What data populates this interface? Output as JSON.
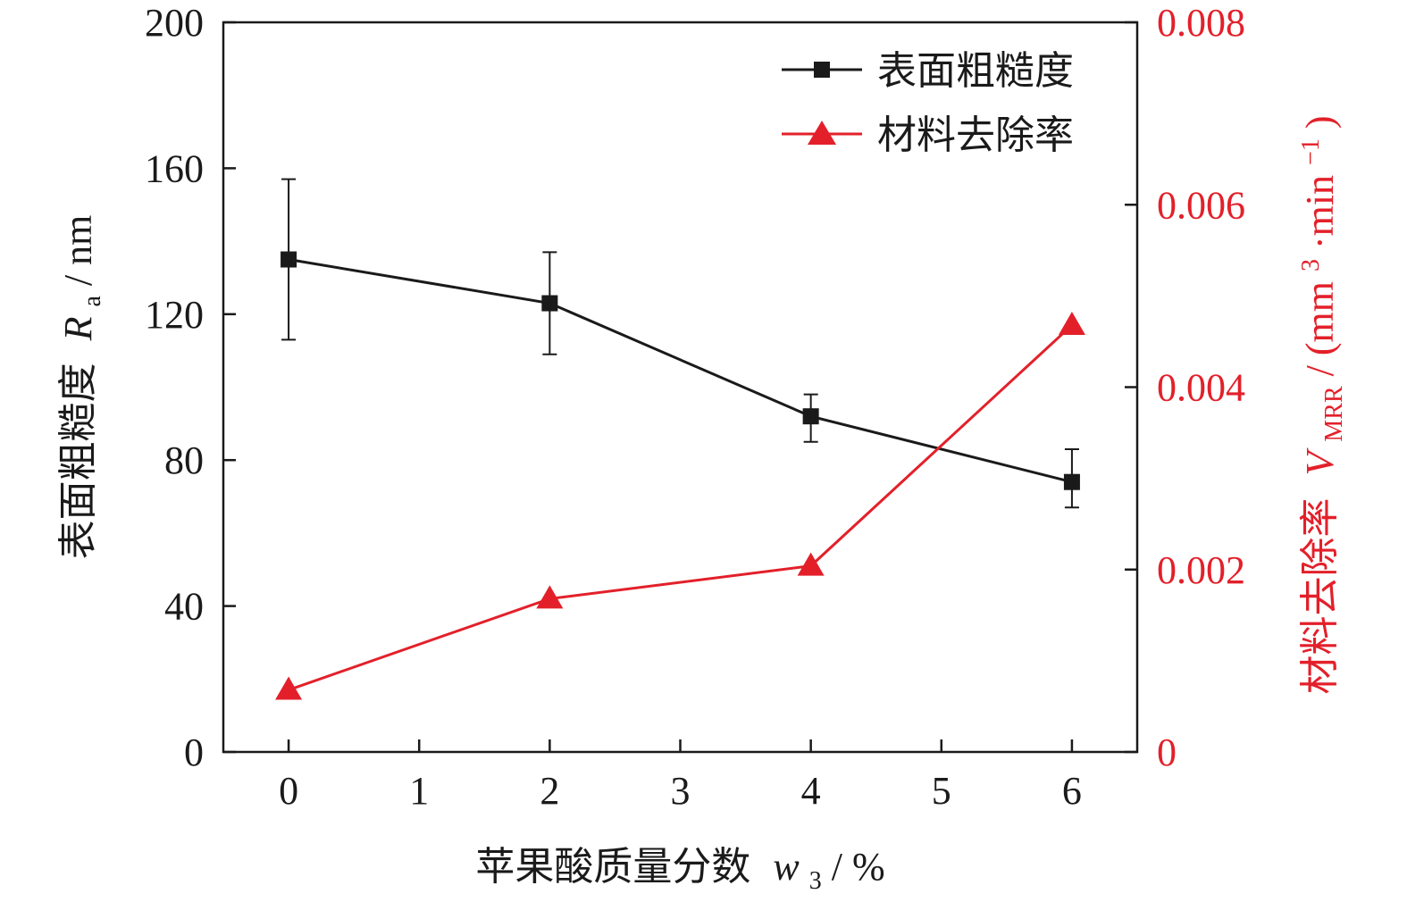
{
  "chart_data": {
    "type": "line",
    "x_axis": {
      "label": "苹果酸质量分数",
      "symbol": "w",
      "subscript": "3",
      "unit": " / %",
      "min": -0.5,
      "max": 6.5,
      "ticks": [
        0,
        1,
        2,
        3,
        4,
        5,
        6
      ],
      "tick_labels": [
        "0",
        "1",
        "2",
        "3",
        "4",
        "5",
        "6"
      ]
    },
    "y_left": {
      "label": "表面粗糙度",
      "symbol": "R",
      "subscript": "a",
      "unit": " / nm",
      "min": 0,
      "max": 200,
      "ticks": [
        0,
        40,
        80,
        120,
        160,
        200
      ],
      "tick_labels": [
        "0",
        "40",
        "80",
        "120",
        "160",
        "200"
      ],
      "color": "#1a1a1a"
    },
    "y_right": {
      "label": "材料去除率",
      "symbol": "V",
      "subscript": "MRR",
      "unit_prefix": " / (mm",
      "unit_sup1": "3",
      "unit_mid": "·min",
      "unit_sup2": "−1",
      "unit_suffix": ")",
      "min": 0,
      "max": 0.008,
      "ticks": [
        0,
        0.002,
        0.004,
        0.006,
        0.008
      ],
      "tick_labels": [
        "0",
        "0.002",
        "0.004",
        "0.006",
        "0.008"
      ],
      "color": "#e3202a"
    },
    "series": [
      {
        "name": "表面粗糙度",
        "axis": "left",
        "marker": "square",
        "color": "#1a1a1a",
        "x": [
          0,
          2,
          4,
          6
        ],
        "y": [
          135,
          123,
          92,
          74
        ],
        "error_low": [
          113,
          109,
          85,
          67
        ],
        "error_high": [
          157,
          137,
          98,
          83
        ]
      },
      {
        "name": "材料去除率",
        "axis": "right",
        "marker": "triangle",
        "color": "#e3202a",
        "x": [
          0,
          2,
          4,
          6
        ],
        "y": [
          0.00068,
          0.00168,
          0.00204,
          0.00468
        ]
      }
    ],
    "legend": {
      "position": "top-right",
      "items": [
        "表面粗糙度",
        "材料去除率"
      ]
    },
    "grid": false
  }
}
